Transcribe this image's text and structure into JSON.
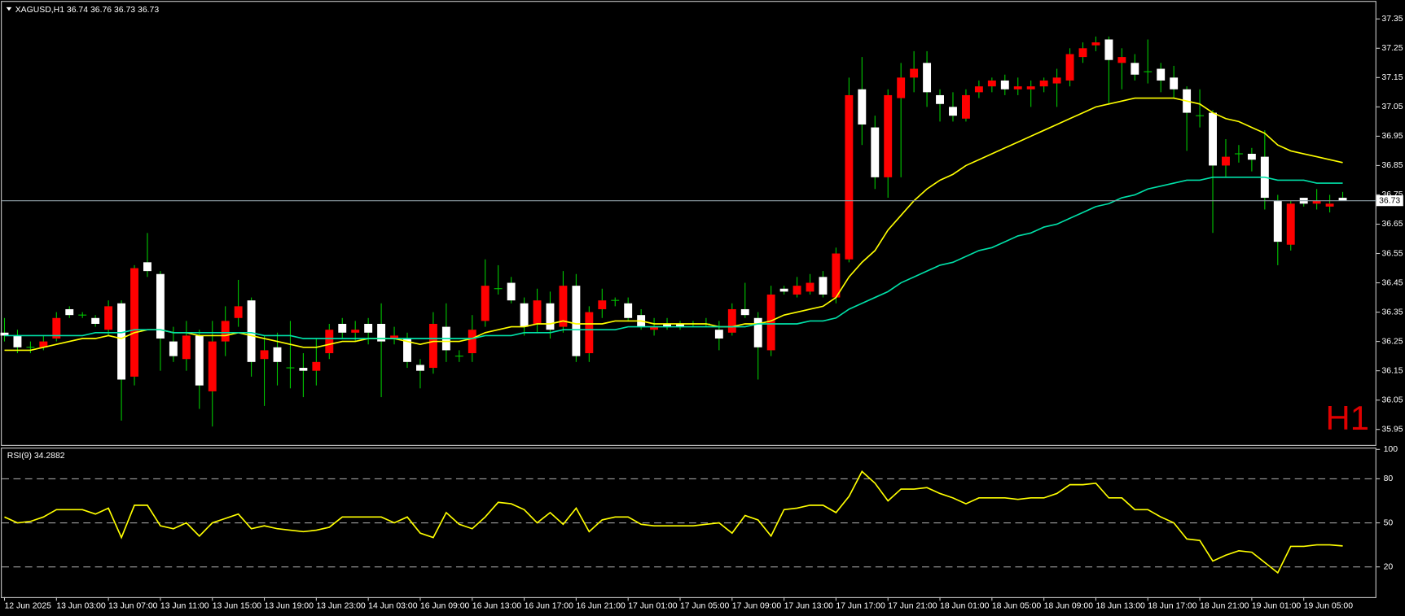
{
  "chart_data": {
    "type": "candlestick",
    "title": "XAGUSD,H1",
    "annotation": "H1",
    "categories": [
      "12 Jun 2025",
      null,
      null,
      null,
      "13 Jun 03:00",
      null,
      null,
      null,
      "13 Jun 07:00",
      null,
      null,
      null,
      "13 Jun 11:00",
      null,
      null,
      null,
      "13 Jun 15:00",
      null,
      null,
      null,
      "13 Jun 19:00",
      null,
      null,
      null,
      "13 Jun 23:00",
      null,
      null,
      null,
      "14 Jun 03:00",
      null,
      null,
      null,
      "16 Jun 09:00",
      null,
      null,
      null,
      "16 Jun 13:00",
      null,
      null,
      null,
      "16 Jun 17:00",
      null,
      null,
      null,
      "16 Jun 21:00",
      null,
      null,
      null,
      "17 Jun 01:00",
      null,
      null,
      null,
      "17 Jun 05:00",
      null,
      null,
      null,
      "17 Jun 09:00",
      null,
      null,
      null,
      "17 Jun 13:00",
      null,
      null,
      null,
      "17 Jun 17:00",
      null,
      null,
      null,
      "17 Jun 21:00",
      null,
      null,
      null,
      "18 Jun 01:00",
      null,
      null,
      null,
      "18 Jun 05:00",
      null,
      null,
      null,
      "18 Jun 09:00",
      null,
      null,
      null,
      "18 Jun 13:00",
      null,
      null,
      null,
      "18 Jun 17:00",
      null,
      null,
      null,
      "18 Jun 21:00",
      null,
      null,
      null,
      "19 Jun 01:00",
      null,
      null,
      null,
      "19 Jun 05:00",
      null,
      null,
      null
    ],
    "open": [
      36.28,
      36.27,
      36.23,
      36.23,
      36.26,
      36.36,
      36.34,
      36.33,
      36.29,
      36.38,
      36.13,
      36.52,
      36.48,
      36.25,
      36.19,
      36.27,
      36.08,
      36.25,
      36.33,
      36.39,
      36.19,
      36.23,
      36.16,
      36.16,
      36.15,
      36.21,
      36.31,
      36.28,
      36.31,
      36.31,
      36.26,
      36.26,
      36.17,
      36.16,
      36.3,
      36.2,
      36.21,
      36.32,
      36.43,
      36.45,
      36.38,
      36.31,
      36.38,
      36.3,
      36.44,
      36.21,
      36.36,
      36.39,
      36.38,
      36.34,
      36.29,
      36.31,
      36.31,
      36.31,
      36.31,
      36.29,
      36.28,
      36.36,
      36.33,
      36.22,
      36.43,
      36.41,
      36.42,
      36.47,
      36.4,
      36.53,
      37.11,
      36.98,
      36.81,
      37.08,
      37.15,
      37.2,
      37.09,
      37.05,
      37.01,
      37.1,
      37.12,
      37.14,
      37.11,
      37.11,
      37.12,
      37.13,
      37.14,
      37.22,
      37.26,
      37.28,
      37.2,
      37.2,
      37.17,
      37.18,
      37.15,
      37.11,
      37.02,
      37.03,
      36.85,
      36.89,
      36.89,
      36.88,
      36.73,
      36.58,
      36.74,
      36.72,
      36.71,
      36.74
    ],
    "high": [
      36.33,
      36.29,
      36.25,
      36.27,
      36.35,
      36.37,
      36.35,
      36.34,
      36.39,
      36.39,
      36.51,
      36.62,
      36.49,
      36.3,
      36.32,
      36.29,
      36.32,
      36.37,
      36.46,
      36.4,
      36.27,
      36.28,
      36.32,
      36.21,
      36.26,
      36.31,
      36.33,
      36.32,
      36.33,
      36.38,
      36.3,
      36.28,
      36.19,
      36.35,
      36.38,
      36.22,
      36.34,
      36.53,
      36.51,
      36.47,
      36.4,
      36.43,
      36.42,
      36.49,
      36.48,
      36.37,
      36.43,
      36.4,
      36.4,
      36.36,
      36.33,
      36.33,
      36.32,
      36.32,
      36.33,
      36.32,
      36.38,
      36.45,
      36.35,
      36.44,
      36.44,
      36.47,
      36.48,
      36.49,
      36.57,
      37.15,
      37.22,
      37.02,
      37.11,
      37.2,
      37.24,
      37.24,
      37.11,
      37.1,
      37.11,
      37.14,
      37.15,
      37.16,
      37.15,
      37.14,
      37.15,
      37.18,
      37.25,
      37.27,
      37.29,
      37.29,
      37.25,
      37.23,
      37.28,
      37.2,
      37.19,
      37.12,
      37.11,
      37.04,
      36.94,
      36.92,
      36.91,
      36.97,
      36.75,
      36.73,
      36.74,
      36.77,
      36.75,
      36.76
    ],
    "low": [
      36.25,
      36.21,
      36.21,
      36.22,
      36.25,
      36.33,
      36.33,
      36.3,
      36.27,
      35.98,
      36.1,
      36.47,
      36.15,
      36.18,
      36.15,
      36.02,
      35.96,
      36.2,
      36.3,
      36.13,
      36.03,
      36.1,
      36.09,
      36.06,
      36.1,
      36.19,
      36.26,
      36.25,
      36.24,
      36.06,
      36.24,
      36.16,
      36.09,
      36.14,
      36.18,
      36.18,
      36.18,
      36.3,
      36.41,
      36.38,
      36.27,
      36.28,
      36.26,
      36.28,
      36.18,
      36.18,
      36.33,
      36.37,
      36.32,
      36.29,
      36.27,
      36.29,
      36.29,
      36.3,
      36.3,
      36.22,
      36.27,
      36.33,
      36.12,
      36.2,
      36.41,
      36.4,
      36.41,
      36.4,
      36.38,
      36.52,
      36.92,
      36.77,
      36.74,
      36.81,
      37.1,
      37.05,
      37.0,
      37.0,
      37.0,
      37.08,
      37.1,
      37.09,
      37.09,
      37.05,
      37.1,
      37.05,
      37.12,
      37.2,
      37.24,
      37.06,
      37.11,
      37.14,
      37.13,
      37.1,
      37.08,
      36.9,
      36.98,
      36.62,
      36.81,
      36.86,
      36.83,
      36.7,
      36.51,
      36.56,
      36.71,
      36.7,
      36.69,
      36.73
    ],
    "close": [
      36.27,
      36.23,
      36.23,
      36.25,
      36.33,
      36.34,
      36.34,
      36.31,
      36.37,
      36.12,
      36.5,
      36.49,
      36.26,
      36.2,
      36.27,
      36.1,
      36.25,
      36.32,
      36.37,
      36.18,
      36.22,
      36.18,
      36.16,
      36.15,
      36.18,
      36.29,
      36.28,
      36.29,
      36.28,
      36.25,
      36.27,
      36.18,
      36.15,
      36.31,
      36.22,
      36.2,
      36.29,
      36.44,
      36.43,
      36.39,
      36.3,
      36.39,
      36.29,
      36.44,
      36.2,
      36.35,
      36.39,
      36.39,
      36.33,
      36.3,
      36.3,
      36.3,
      36.3,
      36.31,
      36.31,
      36.26,
      36.36,
      36.34,
      36.23,
      36.41,
      36.42,
      36.44,
      36.45,
      36.41,
      36.55,
      37.09,
      36.99,
      36.81,
      37.09,
      37.15,
      37.18,
      37.1,
      37.06,
      37.02,
      37.09,
      37.12,
      37.14,
      37.11,
      37.12,
      37.12,
      37.14,
      37.15,
      37.23,
      37.25,
      37.27,
      37.21,
      37.22,
      37.16,
      37.17,
      37.14,
      37.11,
      37.03,
      37.02,
      36.85,
      36.88,
      36.89,
      36.87,
      36.74,
      36.59,
      36.72,
      36.72,
      36.73,
      36.72,
      36.73
    ],
    "up_color": "#ff0000",
    "down_color": "#ffffff",
    "wick_color": "#00c800",
    "price_line_color": "#8fa0a8",
    "ma_lines": [
      {
        "color": "#ffff00",
        "values": [
          36.22,
          36.22,
          36.22,
          36.23,
          36.24,
          36.25,
          36.26,
          36.26,
          36.27,
          36.26,
          36.28,
          36.29,
          36.29,
          36.28,
          36.28,
          36.27,
          36.27,
          36.27,
          36.28,
          36.27,
          36.26,
          36.25,
          36.24,
          36.23,
          36.23,
          36.24,
          36.25,
          36.25,
          36.26,
          36.26,
          36.26,
          36.25,
          36.24,
          36.25,
          36.25,
          36.25,
          36.26,
          36.28,
          36.29,
          36.3,
          36.3,
          36.31,
          36.31,
          36.32,
          36.31,
          36.31,
          36.31,
          36.32,
          36.32,
          36.32,
          36.31,
          36.31,
          36.31,
          36.31,
          36.31,
          36.3,
          36.3,
          36.31,
          36.31,
          36.32,
          36.34,
          36.35,
          36.36,
          36.37,
          36.4,
          36.47,
          36.52,
          36.56,
          36.63,
          36.68,
          36.73,
          36.77,
          36.8,
          36.82,
          36.85,
          36.87,
          36.89,
          36.91,
          36.93,
          36.95,
          36.97,
          36.99,
          37.01,
          37.03,
          37.05,
          37.06,
          37.07,
          37.08,
          37.08,
          37.08,
          37.08,
          37.07,
          37.06,
          37.03,
          37.01,
          37.0,
          36.98,
          36.96,
          36.92,
          36.9,
          36.89,
          36.88,
          36.87,
          36.86
        ]
      },
      {
        "color": "#00e0a8",
        "values": [
          36.27,
          36.27,
          36.27,
          36.27,
          36.27,
          36.27,
          36.27,
          36.28,
          36.28,
          36.28,
          36.29,
          36.29,
          36.29,
          36.28,
          36.28,
          36.28,
          36.28,
          36.28,
          36.28,
          36.28,
          36.27,
          36.27,
          36.27,
          36.26,
          36.26,
          36.26,
          36.26,
          36.26,
          36.26,
          36.26,
          36.26,
          36.26,
          36.26,
          36.26,
          36.26,
          36.26,
          36.26,
          36.27,
          36.27,
          36.27,
          36.28,
          36.28,
          36.28,
          36.29,
          36.29,
          36.29,
          36.29,
          36.29,
          36.3,
          36.3,
          36.3,
          36.3,
          36.3,
          36.3,
          36.3,
          36.3,
          36.3,
          36.3,
          36.31,
          36.31,
          36.31,
          36.31,
          36.32,
          36.32,
          36.33,
          36.36,
          36.38,
          36.4,
          36.42,
          36.45,
          36.47,
          36.49,
          36.51,
          36.52,
          36.54,
          36.56,
          36.57,
          36.59,
          36.61,
          36.62,
          36.64,
          36.65,
          36.67,
          36.69,
          36.71,
          36.72,
          36.74,
          36.75,
          36.77,
          36.78,
          36.79,
          36.8,
          36.8,
          36.81,
          36.81,
          36.81,
          36.81,
          36.81,
          36.8,
          36.8,
          36.8,
          36.79,
          36.79,
          36.79
        ]
      }
    ],
    "ylim": [
      35.9,
      37.39
    ],
    "yticks": [
      35.95,
      36.05,
      36.15,
      36.25,
      36.35,
      36.45,
      36.55,
      36.65,
      36.75,
      36.85,
      36.95,
      37.05,
      37.15,
      37.25,
      37.35
    ],
    "rsi": {
      "label": "RSI(9)",
      "color": "#ffff00",
      "ylim": [
        0,
        100
      ],
      "yticks": [
        20,
        50,
        80,
        100
      ],
      "levels": [
        20,
        50,
        80
      ],
      "values": [
        54,
        50,
        51,
        54,
        59,
        59,
        59,
        56,
        60,
        40,
        62,
        62,
        48,
        46,
        50,
        41,
        50,
        53,
        56,
        46,
        48,
        46,
        45,
        44,
        45,
        47,
        54,
        54,
        54,
        54,
        50,
        54,
        43,
        40,
        57,
        49,
        46,
        54,
        64,
        63,
        59,
        50,
        57,
        49,
        60,
        44,
        52,
        54,
        54,
        49,
        48,
        48,
        48,
        48,
        49,
        50,
        43,
        55,
        52,
        41,
        59,
        60,
        62,
        62,
        57,
        68,
        85,
        77,
        65,
        73,
        73,
        74,
        70,
        67,
        63,
        67,
        67,
        67,
        66,
        67,
        67,
        70,
        76,
        76,
        77,
        67,
        67,
        59,
        59,
        54,
        50,
        39,
        38,
        24,
        28,
        31,
        30,
        23,
        16,
        34,
        34,
        35,
        35,
        34.2882
      ]
    }
  }
}
